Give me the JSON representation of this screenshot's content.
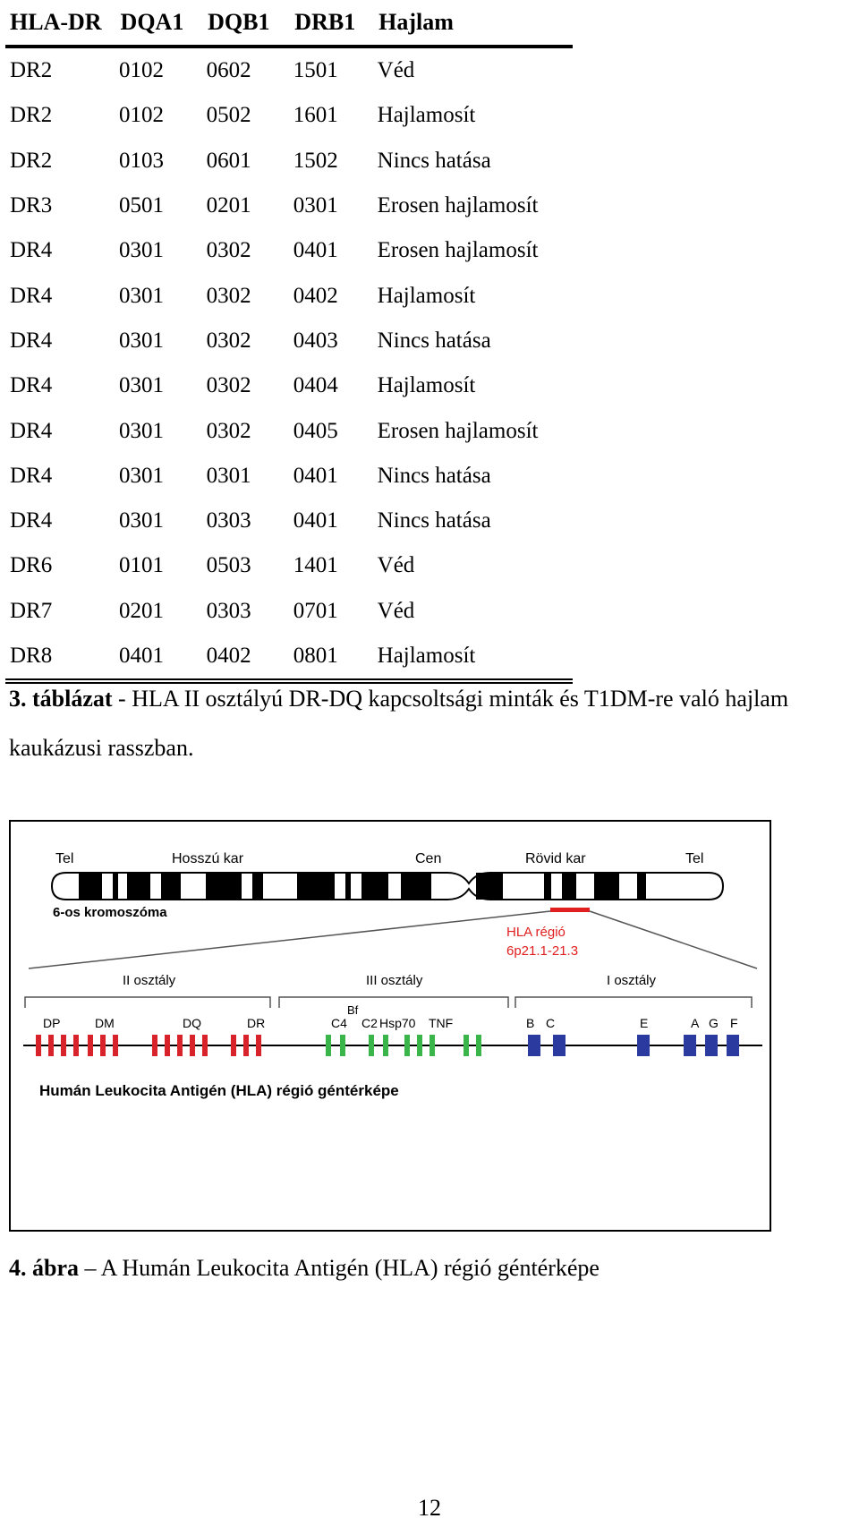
{
  "table": {
    "headers": [
      "HLA-DR",
      "DQA1",
      "DQB1",
      "DRB1",
      "Hajlam"
    ],
    "rows": [
      [
        "DR2",
        "0102",
        "0602",
        "1501",
        "Véd"
      ],
      [
        "DR2",
        "0102",
        "0502",
        "1601",
        "Hajlamosít"
      ],
      [
        "DR2",
        "0103",
        "0601",
        "1502",
        "Nincs hatása"
      ],
      [
        "DR3",
        "0501",
        "0201",
        "0301",
        "Erosen hajlamosít"
      ],
      [
        "DR4",
        "0301",
        "0302",
        "0401",
        "Erosen hajlamosít"
      ],
      [
        "DR4",
        "0301",
        "0302",
        "0402",
        "Hajlamosít"
      ],
      [
        "DR4",
        "0301",
        "0302",
        "0403",
        "Nincs hatása"
      ],
      [
        "DR4",
        "0301",
        "0302",
        "0404",
        "Hajlamosít"
      ],
      [
        "DR4",
        "0301",
        "0302",
        "0405",
        "Erosen hajlamosít"
      ],
      [
        "DR4",
        "0301",
        "0301",
        "0401",
        "Nincs hatása"
      ],
      [
        "DR4",
        "0301",
        "0303",
        "0401",
        "Nincs hatása"
      ],
      [
        "DR6",
        "0101",
        "0503",
        "1401",
        "Véd"
      ],
      [
        "DR7",
        "0201",
        "0303",
        "0701",
        "Véd"
      ],
      [
        "DR8",
        "0401",
        "0402",
        "0801",
        "Hajlamosít"
      ]
    ]
  },
  "table_caption": {
    "label": "3. táblázat",
    "text_line1": " - HLA II osztályú DR-DQ kapcsoltsági minták és T1DM-re való hajlam",
    "text_line2": "kaukázusi rasszban."
  },
  "figure": {
    "tel_left": "Tel",
    "long_arm": "Hosszú kar",
    "centromere": "Cen",
    "short_arm": "Rövid kar",
    "tel_right": "Tel",
    "chromosome_label": "6-os kromoszóma",
    "hla_region_label": "HLA régió",
    "hla_region_band": "6p21.1-21.3",
    "class_ii": "II osztály",
    "class_iii": "III osztály",
    "class_i": "I osztály",
    "gene_dp": "DP",
    "gene_dm": "DM",
    "gene_dq": "DQ",
    "gene_dr": "DR",
    "gene_bf": "Bf",
    "gene_c4": "C4",
    "gene_c2": "C2",
    "gene_hsp70": "Hsp70",
    "gene_tnf": "TNF",
    "gene_b": "B",
    "gene_c": "C",
    "gene_e": "E",
    "gene_a": "A",
    "gene_g": "G",
    "gene_f": "F",
    "title": "Humán Leukocita Antigén (HLA) régió géntérképe",
    "colors": {
      "class_ii": "#d9232a",
      "class_iii": "#3ab54a",
      "class_i": "#2b3a9e",
      "hla_region": "#e02020"
    }
  },
  "figure_caption": {
    "label": "4. ábra",
    "text": " – A Humán Leukocita Antigén (HLA) régió géntérképe"
  },
  "page_number": "12"
}
